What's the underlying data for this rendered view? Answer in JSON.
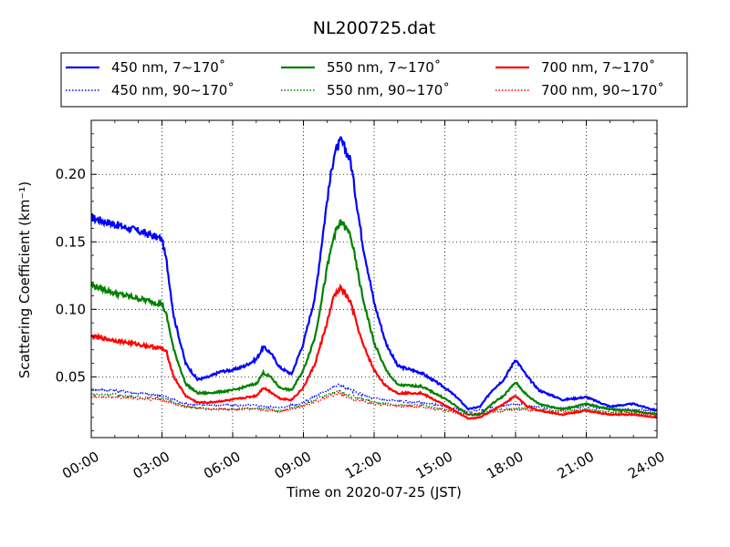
{
  "chart_data": {
    "type": "line",
    "title": "NL200725.dat",
    "xlabel": "Time on 2020-07-25 (JST)",
    "ylabel": "Scattering Coefficient (km⁻¹)",
    "x_unit": "hour",
    "xlim": [
      0,
      24
    ],
    "ylim": [
      0.005,
      0.24
    ],
    "xticks": [
      0,
      3,
      6,
      9,
      12,
      15,
      18,
      21,
      24
    ],
    "xtick_labels": [
      "00:00",
      "03:00",
      "06:00",
      "09:00",
      "12:00",
      "15:00",
      "18:00",
      "21:00",
      "24:00"
    ],
    "yticks": [
      0.05,
      0.1,
      0.15,
      0.2
    ],
    "ytick_labels": [
      "0.05",
      "0.10",
      "0.15",
      "0.20"
    ],
    "grid": true,
    "legend_position": "top, above plot, 3 columns",
    "series": [
      {
        "name": "450 nm, 7∼170˚",
        "color": "#0000ff",
        "style": "solid",
        "x": [
          0,
          1,
          2,
          3,
          3.2,
          3.5,
          4,
          4.5,
          5,
          5.5,
          6,
          6.5,
          7,
          7.3,
          7.6,
          8,
          8.5,
          9,
          9.5,
          10,
          10.3,
          10.6,
          11,
          11.5,
          12,
          12.5,
          13,
          14,
          15,
          15.5,
          16,
          16.5,
          17,
          17.5,
          18,
          18.5,
          19,
          20,
          21,
          22,
          23,
          24
        ],
        "y": [
          0.168,
          0.163,
          0.158,
          0.152,
          0.135,
          0.095,
          0.06,
          0.048,
          0.05,
          0.054,
          0.055,
          0.058,
          0.063,
          0.072,
          0.068,
          0.057,
          0.052,
          0.075,
          0.11,
          0.18,
          0.215,
          0.225,
          0.21,
          0.15,
          0.105,
          0.075,
          0.058,
          0.053,
          0.042,
          0.035,
          0.026,
          0.028,
          0.04,
          0.048,
          0.063,
          0.05,
          0.04,
          0.033,
          0.035,
          0.028,
          0.03,
          0.025
        ]
      },
      {
        "name": "450 nm, 90∼170˚",
        "color": "#0000ff",
        "style": "dotted",
        "x": [
          0,
          1,
          2,
          3,
          3.5,
          4,
          5,
          6,
          7,
          8,
          9,
          10,
          10.5,
          11,
          12,
          13,
          14,
          15,
          16,
          17,
          18,
          19,
          20,
          21,
          22,
          23,
          24
        ],
        "y": [
          0.041,
          0.04,
          0.038,
          0.036,
          0.033,
          0.03,
          0.029,
          0.029,
          0.029,
          0.027,
          0.031,
          0.04,
          0.044,
          0.04,
          0.034,
          0.032,
          0.031,
          0.028,
          0.024,
          0.027,
          0.03,
          0.028,
          0.027,
          0.028,
          0.026,
          0.026,
          0.025
        ]
      },
      {
        "name": "550 nm, 7∼170˚",
        "color": "#008000",
        "style": "solid",
        "x": [
          0,
          1,
          2,
          3,
          3.2,
          3.5,
          4,
          4.5,
          5,
          6,
          7,
          7.3,
          7.6,
          8,
          8.5,
          9,
          9.5,
          10,
          10.3,
          10.6,
          11,
          11.5,
          12,
          12.5,
          13,
          14,
          15,
          16,
          16.5,
          17,
          17.5,
          18,
          18.5,
          19,
          20,
          21,
          22,
          23,
          24
        ],
        "y": [
          0.118,
          0.112,
          0.108,
          0.104,
          0.095,
          0.07,
          0.045,
          0.038,
          0.038,
          0.04,
          0.045,
          0.053,
          0.05,
          0.042,
          0.04,
          0.055,
          0.08,
          0.13,
          0.155,
          0.165,
          0.155,
          0.11,
          0.075,
          0.055,
          0.044,
          0.043,
          0.034,
          0.022,
          0.022,
          0.03,
          0.036,
          0.046,
          0.036,
          0.03,
          0.026,
          0.03,
          0.026,
          0.025,
          0.022
        ]
      },
      {
        "name": "550 nm, 90∼170˚",
        "color": "#008000",
        "style": "dotted",
        "x": [
          0,
          1,
          2,
          3,
          3.5,
          4,
          5,
          6,
          7,
          8,
          9,
          10,
          10.5,
          11,
          12,
          13,
          14,
          15,
          16,
          17,
          18,
          19,
          20,
          21,
          22,
          23,
          24
        ],
        "y": [
          0.037,
          0.037,
          0.035,
          0.034,
          0.031,
          0.028,
          0.026,
          0.026,
          0.027,
          0.025,
          0.029,
          0.037,
          0.04,
          0.036,
          0.031,
          0.029,
          0.029,
          0.026,
          0.022,
          0.025,
          0.027,
          0.026,
          0.025,
          0.026,
          0.024,
          0.024,
          0.023
        ]
      },
      {
        "name": "700 nm, 7∼170˚",
        "color": "#ff0000",
        "style": "solid",
        "x": [
          0,
          1,
          2,
          3,
          3.2,
          3.5,
          4,
          4.5,
          5,
          6,
          7,
          7.3,
          7.6,
          8,
          8.5,
          9,
          9.5,
          10,
          10.3,
          10.6,
          11,
          11.5,
          12,
          12.5,
          13,
          14,
          15,
          16,
          16.5,
          17,
          17.5,
          18,
          18.5,
          19,
          20,
          21,
          22,
          23,
          24
        ],
        "y": [
          0.08,
          0.077,
          0.074,
          0.071,
          0.068,
          0.05,
          0.036,
          0.031,
          0.031,
          0.033,
          0.036,
          0.042,
          0.039,
          0.034,
          0.033,
          0.042,
          0.06,
          0.09,
          0.11,
          0.116,
          0.105,
          0.075,
          0.055,
          0.043,
          0.038,
          0.038,
          0.029,
          0.019,
          0.02,
          0.025,
          0.03,
          0.036,
          0.028,
          0.025,
          0.022,
          0.025,
          0.022,
          0.022,
          0.02
        ]
      },
      {
        "name": "700 nm, 90∼170˚",
        "color": "#ff0000",
        "style": "dotted",
        "x": [
          0,
          1,
          2,
          3,
          3.5,
          4,
          5,
          6,
          7,
          8,
          9,
          10,
          10.5,
          11,
          12,
          13,
          14,
          15,
          16,
          17,
          18,
          19,
          20,
          21,
          22,
          23,
          24
        ],
        "y": [
          0.035,
          0.035,
          0.034,
          0.033,
          0.03,
          0.028,
          0.026,
          0.026,
          0.026,
          0.024,
          0.028,
          0.035,
          0.038,
          0.034,
          0.03,
          0.028,
          0.028,
          0.025,
          0.022,
          0.024,
          0.026,
          0.025,
          0.024,
          0.025,
          0.023,
          0.023,
          0.022
        ]
      }
    ]
  }
}
